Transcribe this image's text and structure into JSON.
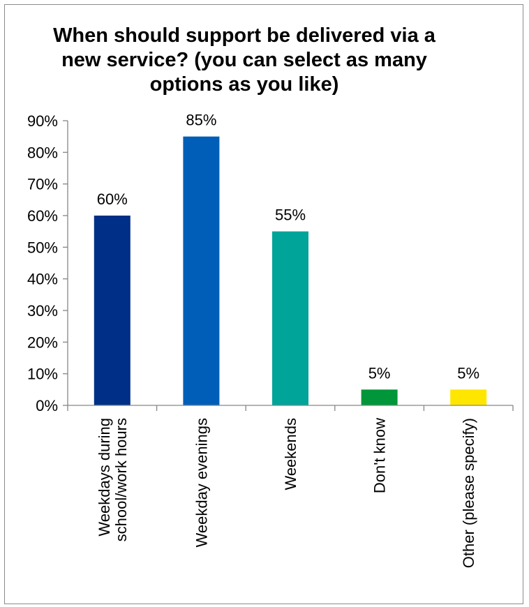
{
  "chart_data": {
    "type": "bar",
    "title": "When should support be delivered via a new service? (you can select as many options as you like)",
    "xlabel": "",
    "ylabel": "",
    "categories": [
      "Weekdays during school/work hours",
      "Weekday evenings",
      "Weekends",
      "Don't know",
      "Other (please specify)"
    ],
    "category_lines": [
      [
        "Weekdays during",
        "school/work hours"
      ],
      [
        "Weekday evenings"
      ],
      [
        "Weekends"
      ],
      [
        "Don't know"
      ],
      [
        "Other (please specify)"
      ]
    ],
    "values": [
      60,
      85,
      55,
      5,
      5
    ],
    "data_labels": [
      "60%",
      "85%",
      "55%",
      "5%",
      "5%"
    ],
    "colors": [
      "#002F87",
      "#005EB8",
      "#00A499",
      "#009639",
      "#FFE600"
    ],
    "ylim": [
      0,
      90
    ],
    "yticks": [
      0,
      10,
      20,
      30,
      40,
      50,
      60,
      70,
      80,
      90
    ],
    "ytick_labels": [
      "0%",
      "10%",
      "20%",
      "30%",
      "40%",
      "50%",
      "60%",
      "70%",
      "80%",
      "90%"
    ],
    "grid": false,
    "legend": "none"
  }
}
